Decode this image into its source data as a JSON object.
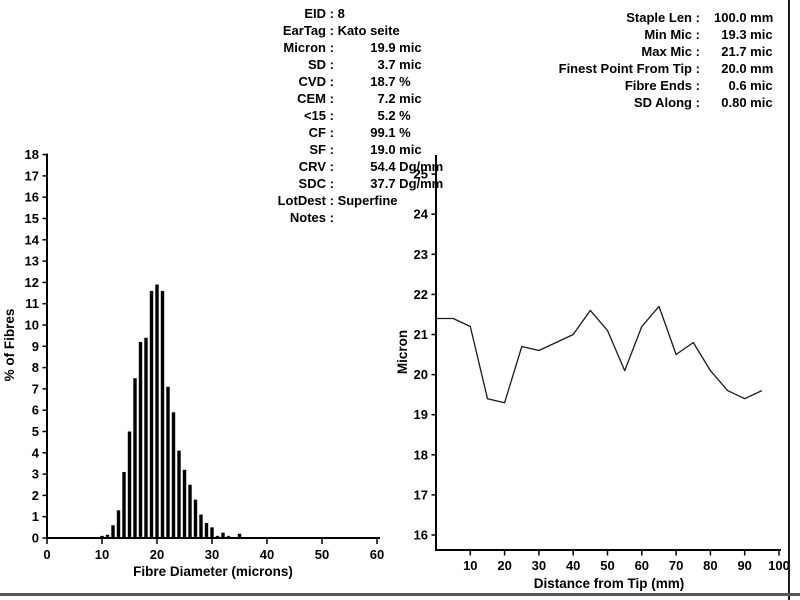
{
  "colors": {
    "ink": "#000000",
    "line": "#1a1a1a",
    "frame_right": "#1a1a1a",
    "frame_bottom": "#555555",
    "background": "#ffffff"
  },
  "stats_center": {
    "rows": [
      {
        "label": "EID",
        "value": "8"
      },
      {
        "label": "EarTag",
        "value": "Kato seite"
      },
      {
        "label": "Micron",
        "num": "19.9",
        "unit": "mic"
      },
      {
        "label": "SD",
        "num": "3.7",
        "unit": "mic"
      },
      {
        "label": "CVD",
        "num": "18.7",
        "unit": "%"
      },
      {
        "label": "CEM",
        "num": "7.2",
        "unit": "mic"
      },
      {
        "label": "<15",
        "num": "5.2",
        "unit": "%"
      },
      {
        "label": "CF",
        "num": "99.1",
        "unit": "%"
      },
      {
        "label": "SF",
        "num": "19.0",
        "unit": "mic"
      },
      {
        "label": "CRV",
        "num": "54.4",
        "unit": "Dg/mm"
      },
      {
        "label": "SDC",
        "num": "37.7",
        "unit": "Dg/mm"
      },
      {
        "label": "LotDest",
        "value": "Superfine"
      },
      {
        "label": "Notes",
        "value": ""
      }
    ]
  },
  "stats_right": {
    "rows": [
      {
        "label": "Staple Len",
        "num": "100.0",
        "unit": "mm"
      },
      {
        "label": "Min Mic",
        "num": "19.3",
        "unit": "mic"
      },
      {
        "label": "Max Mic",
        "num": "21.7",
        "unit": "mic"
      },
      {
        "label": "Finest Point From Tip",
        "num": "20.0",
        "unit": "mm"
      },
      {
        "label": "Fibre Ends",
        "num": "0.6",
        "unit": "mic"
      },
      {
        "label": "SD Along",
        "num": "0.80",
        "unit": "mic"
      }
    ]
  },
  "chart_data": [
    {
      "type": "bar",
      "title": "",
      "xlabel": "Fibre Diameter (microns)",
      "ylabel": "% of Fibres",
      "xlim": [
        0,
        60
      ],
      "ylim": [
        0,
        18
      ],
      "grid": false,
      "x_ticks": [
        0,
        10,
        20,
        30,
        40,
        50,
        60
      ],
      "y_ticks": [
        0,
        1,
        2,
        3,
        4,
        5,
        6,
        7,
        8,
        9,
        10,
        11,
        12,
        13,
        14,
        15,
        16,
        17,
        18
      ],
      "categories": [
        10,
        11,
        12,
        13,
        14,
        15,
        16,
        17,
        18,
        19,
        20,
        21,
        22,
        23,
        24,
        25,
        26,
        27,
        28,
        29,
        30,
        31,
        32,
        33,
        34,
        35
      ],
      "values": [
        0.1,
        0.15,
        0.6,
        1.3,
        3.1,
        5.0,
        7.5,
        9.2,
        9.4,
        11.6,
        11.9,
        11.6,
        7.1,
        5.9,
        4.1,
        3.2,
        2.5,
        1.8,
        1.1,
        0.7,
        0.5,
        0.1,
        0.25,
        0.1,
        0.05,
        0.2
      ]
    },
    {
      "type": "line",
      "title": "",
      "xlabel": "Distance from Tip (mm)",
      "ylabel": "Micron",
      "xlim": [
        0,
        100
      ],
      "ylim": [
        15.6,
        25.5
      ],
      "grid": false,
      "x_ticks": [
        10,
        20,
        30,
        40,
        50,
        60,
        70,
        80,
        90,
        100
      ],
      "y_ticks": [
        16,
        17,
        18,
        19,
        20,
        21,
        22,
        23,
        24,
        25
      ],
      "x": [
        0,
        5,
        10,
        15,
        20,
        25,
        30,
        35,
        40,
        45,
        50,
        55,
        60,
        65,
        70,
        75,
        80,
        85,
        90,
        95
      ],
      "y": [
        21.4,
        21.4,
        21.2,
        19.4,
        19.3,
        20.7,
        20.6,
        20.8,
        21.0,
        21.6,
        21.1,
        20.1,
        21.2,
        21.7,
        20.5,
        20.8,
        20.1,
        19.6,
        19.4,
        19.6
      ]
    }
  ]
}
